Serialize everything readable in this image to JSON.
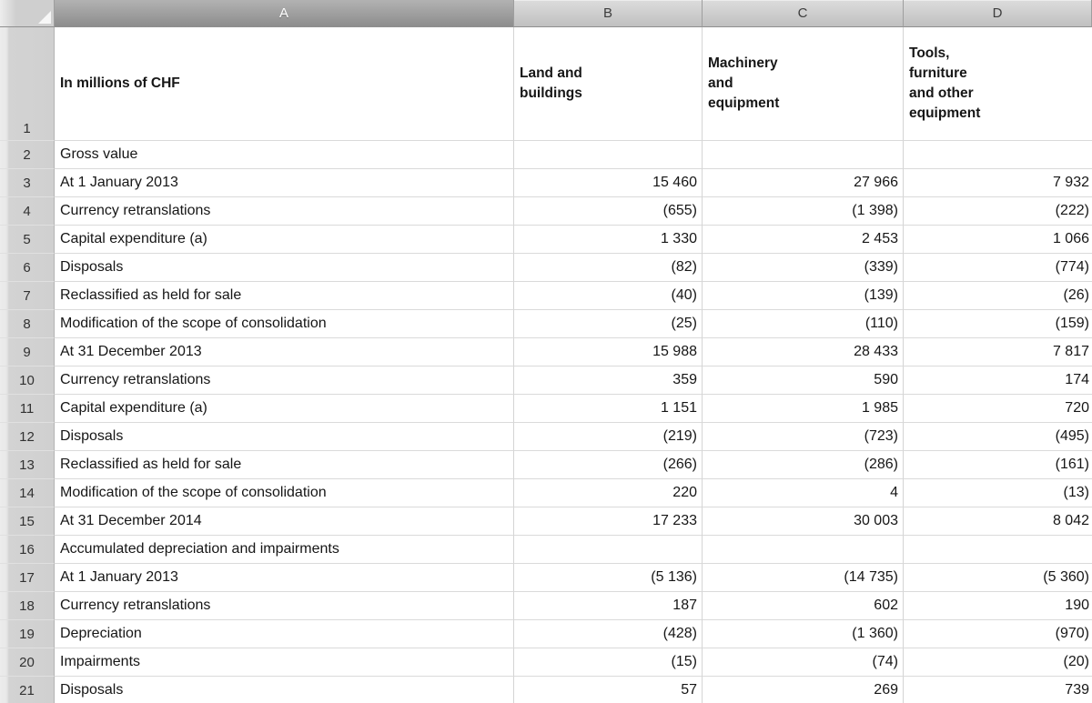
{
  "app": {
    "name": "spreadsheet",
    "selected_column": "A"
  },
  "colors": {
    "col_header_bg": "#c9c9c9",
    "col_header_selected_bg": "#9a9a9a",
    "col_header_selected_text": "#ffffff",
    "row_header_bg": "#d2d2d2",
    "gridline": "#dadada",
    "cell_text": "#161616"
  },
  "column_headers": [
    {
      "letter": "A",
      "selected": true
    },
    {
      "letter": "B",
      "selected": false
    },
    {
      "letter": "C",
      "selected": false
    },
    {
      "letter": "D",
      "selected": false
    }
  ],
  "header_row": {
    "row_num": "1",
    "a": "In millions of CHF",
    "b": "Land and\nbuildings",
    "c": "Machinery\nand\nequipment",
    "d": "Tools,\nfurniture\nand other\nequipment"
  },
  "rows": [
    {
      "n": "2",
      "label": "Gross value",
      "b": "",
      "c": "",
      "d": ""
    },
    {
      "n": "3",
      "label": "At 1 January 2013",
      "b": "15 460",
      "c": "27 966",
      "d": "7 932"
    },
    {
      "n": "4",
      "label": "Currency retranslations",
      "b": "(655)",
      "c": "(1 398)",
      "d": "(222)"
    },
    {
      "n": "5",
      "label": "Capital expenditure (a)",
      "b": "1 330",
      "c": "2 453",
      "d": "1 066"
    },
    {
      "n": "6",
      "label": "Disposals",
      "b": "(82)",
      "c": "(339)",
      "d": "(774)"
    },
    {
      "n": "7",
      "label": "Reclassified as held for sale",
      "b": "(40)",
      "c": "(139)",
      "d": "(26)"
    },
    {
      "n": "8",
      "label": "Modification of the scope of consolidation",
      "b": "(25)",
      "c": "(110)",
      "d": "(159)"
    },
    {
      "n": "9",
      "label": "At 31 December 2013",
      "b": "15 988",
      "c": "28 433",
      "d": "7 817"
    },
    {
      "n": "10",
      "label": "Currency retranslations",
      "b": "359",
      "c": "590",
      "d": "174"
    },
    {
      "n": "11",
      "label": "Capital expenditure (a)",
      "b": "1 151",
      "c": "1 985",
      "d": "720"
    },
    {
      "n": "12",
      "label": "Disposals",
      "b": "(219)",
      "c": "(723)",
      "d": "(495)"
    },
    {
      "n": "13",
      "label": "Reclassified as held for sale",
      "b": "(266)",
      "c": "(286)",
      "d": "(161)"
    },
    {
      "n": "14",
      "label": "Modification of the scope of consolidation",
      "b": "220",
      "c": "4",
      "d": "(13)"
    },
    {
      "n": "15",
      "label": "At 31 December 2014",
      "b": "17 233",
      "c": "30 003",
      "d": "8 042"
    },
    {
      "n": "16",
      "label": "Accumulated depreciation and impairments",
      "b": "",
      "c": "",
      "d": ""
    },
    {
      "n": "17",
      "label": "At 1 January 2013",
      "b": "(5 136)",
      "c": "(14 735)",
      "d": "(5 360)"
    },
    {
      "n": "18",
      "label": "Currency retranslations",
      "b": "187",
      "c": "602",
      "d": "190"
    },
    {
      "n": "19",
      "label": "Depreciation",
      "b": "(428)",
      "c": "(1 360)",
      "d": "(970)"
    },
    {
      "n": "20",
      "label": "Impairments",
      "b": "(15)",
      "c": "(74)",
      "d": "(20)"
    },
    {
      "n": "21",
      "label": "Disposals",
      "b": "57",
      "c": "269",
      "d": "739"
    }
  ]
}
